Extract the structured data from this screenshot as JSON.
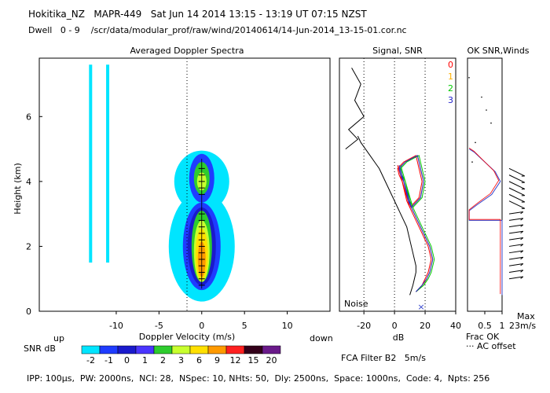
{
  "header": {
    "line1": "Hokitika_NZ   MAPR-449   Sat Jun 14 2014 13:15 - 13:19 UT 07:15 NZST",
    "line2": "Dwell   0 - 9    /scr/data/modular_prof/raw/wind/20140614/14-Jun-2014_13-15-01.cor.nc"
  },
  "footer": {
    "params": "IPP: 100µs,  PW: 2000ns,  NCI: 28,  NSpec: 10, NHts: 50,  Dly: 2500ns,  Space: 1000ns,  Code: 4,  Npts: 256",
    "fca": "FCA Filter B2   5m/s"
  },
  "colorbar": {
    "up_label": "up",
    "down_label": "down",
    "snr_label": "SNR dB",
    "tick_labels": [
      "-2",
      "-1",
      "0",
      "1",
      "2",
      "3",
      "6",
      "9",
      "12",
      "15",
      "20"
    ],
    "colors": [
      "#00e5ff",
      "#1f3cff",
      "#1a1acc",
      "#4a35ff",
      "#2ecc2e",
      "#c8ff2e",
      "#ffe000",
      "#ff9a00",
      "#ff2020",
      "#33001a",
      "#6a1a8a"
    ]
  },
  "labels": {
    "noise": "Noise",
    "frac_ok": "Frac OK",
    "ac_offset": "··· AC offset",
    "max": "Max",
    "max_value": "23m/s"
  },
  "chart_data": [
    {
      "type": "heatmap",
      "title": "Averaged Doppler Spectra",
      "xlabel": "Doppler Velocity (m/s)",
      "ylabel": "Height (km)",
      "xlim": [
        -19,
        15
      ],
      "ylim": [
        0,
        7.8
      ],
      "x_ticks": [
        -10,
        -5,
        0,
        5,
        10
      ],
      "y_ticks": [
        0,
        2,
        4,
        6
      ],
      "features": [
        {
          "name": "ground-clutter",
          "x": -12,
          "y_range": [
            1.5,
            7.6
          ]
        },
        {
          "name": "echo-upper",
          "x_center": 0,
          "y_range": [
            3.3,
            5.0
          ],
          "peak_snr_db": 2
        },
        {
          "name": "echo-lower",
          "x_center": 0,
          "y_range": [
            0.7,
            3.2
          ],
          "peak_snr_db": 9
        }
      ],
      "grid": false
    },
    {
      "type": "line",
      "title": "Signal, SNR",
      "xlabel": "dB",
      "xlim": [
        -36,
        40
      ],
      "ylim": [
        0,
        7.8
      ],
      "x_ticks": [
        -20,
        0,
        20,
        40
      ],
      "series": [
        {
          "name": "0",
          "color": "#ff0000",
          "x": [
            14,
            18,
            20,
            22,
            23,
            24,
            23,
            22,
            20,
            18,
            16,
            14,
            12,
            10,
            8,
            7,
            6,
            5,
            3,
            2,
            4,
            6,
            10,
            14,
            18,
            16,
            10,
            2
          ],
          "y": [
            0.6,
            0.8,
            1.0,
            1.2,
            1.4,
            1.6,
            1.8,
            2.0,
            2.2,
            2.4,
            2.6,
            2.8,
            3.0,
            3.2,
            3.4,
            3.6,
            3.8,
            4.0,
            4.2,
            4.4,
            4.5,
            4.6,
            4.7,
            4.8,
            4.0,
            3.5,
            3.2,
            4.5
          ]
        },
        {
          "name": "1",
          "color": "#ffb000",
          "x": [
            14,
            19,
            21,
            23,
            24,
            25,
            24,
            23,
            21,
            19,
            17,
            15,
            13,
            11,
            9,
            8,
            7,
            6,
            4,
            3,
            5,
            7,
            11,
            15,
            19,
            17,
            11,
            3
          ],
          "y": [
            0.6,
            0.8,
            1.0,
            1.2,
            1.4,
            1.6,
            1.8,
            2.0,
            2.2,
            2.4,
            2.6,
            2.8,
            3.0,
            3.2,
            3.4,
            3.6,
            3.8,
            4.0,
            4.2,
            4.4,
            4.5,
            4.6,
            4.7,
            4.8,
            4.0,
            3.5,
            3.2,
            4.5
          ]
        },
        {
          "name": "2",
          "color": "#00cc00",
          "x": [
            14,
            19,
            22,
            24,
            25,
            26,
            25,
            24,
            22,
            20,
            18,
            16,
            14,
            12,
            10,
            9,
            8,
            7,
            5,
            4,
            6,
            8,
            12,
            16,
            20,
            18,
            12,
            4
          ],
          "y": [
            0.6,
            0.8,
            1.0,
            1.2,
            1.4,
            1.6,
            1.8,
            2.0,
            2.2,
            2.4,
            2.6,
            2.8,
            3.0,
            3.2,
            3.4,
            3.6,
            3.8,
            4.0,
            4.2,
            4.4,
            4.5,
            4.6,
            4.7,
            4.8,
            4.0,
            3.5,
            3.2,
            4.5
          ]
        },
        {
          "name": "3",
          "color": "#2222cc",
          "x": [
            14,
            18,
            21,
            23,
            24,
            25,
            24,
            23,
            21,
            19,
            17,
            15,
            13,
            11,
            9,
            8,
            7,
            6,
            4,
            3,
            5,
            7,
            11,
            15,
            19,
            17,
            11,
            3
          ],
          "y": [
            0.6,
            0.8,
            1.0,
            1.2,
            1.4,
            1.6,
            1.8,
            2.0,
            2.2,
            2.4,
            2.6,
            2.8,
            3.0,
            3.2,
            3.4,
            3.6,
            3.8,
            4.0,
            4.2,
            4.4,
            4.5,
            4.6,
            4.7,
            4.8,
            4.0,
            3.5,
            3.2,
            4.5
          ]
        },
        {
          "name": "signal",
          "color": "#000000",
          "x": [
            10,
            12,
            13,
            14,
            14,
            13,
            12,
            11,
            10,
            9,
            8,
            6,
            4,
            2,
            0,
            -2,
            -4,
            -6,
            -8,
            -10,
            -13,
            -16,
            -19,
            -22,
            -24
          ],
          "y": [
            0.5,
            0.8,
            1.0,
            1.2,
            1.4,
            1.6,
            1.8,
            2.0,
            2.2,
            2.4,
            2.6,
            2.8,
            3.0,
            3.2,
            3.4,
            3.6,
            3.8,
            4.0,
            4.2,
            4.4,
            4.6,
            4.8,
            5.0,
            5.2,
            5.4
          ]
        }
      ],
      "grid": true
    },
    {
      "type": "line",
      "title": "OK SNR,Winds",
      "xlabel": "Frac OK",
      "xlim": [
        0,
        1
      ],
      "ylim": [
        0,
        7.8
      ],
      "x_ticks": [
        0.5,
        1
      ],
      "legend": [
        "0",
        "1",
        "2",
        "3"
      ],
      "series": [
        {
          "name": "frac-ok",
          "color": "#3344cc",
          "x": [
            1.0,
            1.0,
            1.0,
            1.0,
            0.05,
            0.05,
            0.3,
            0.7,
            0.95,
            0.8,
            0.5,
            0.2,
            0.05
          ],
          "y": [
            0.5,
            1.0,
            2.0,
            2.8,
            2.8,
            3.1,
            3.3,
            3.6,
            4.0,
            4.3,
            4.6,
            4.9,
            5.0
          ]
        }
      ]
    },
    {
      "type": "scatter",
      "title": "Winds",
      "series": [
        {
          "name": "wind-arrows",
          "x": [
            1.0,
            1.2,
            1.4,
            1.6,
            1.8,
            2.0,
            2.2,
            2.4,
            2.6,
            2.8,
            3.0,
            3.4,
            3.6,
            3.8,
            4.0,
            4.2,
            4.4
          ],
          "values": [
            18,
            18,
            18,
            18,
            18,
            18,
            18,
            18,
            18,
            18,
            18,
            22,
            22,
            22,
            22,
            22,
            22
          ]
        }
      ]
    }
  ]
}
